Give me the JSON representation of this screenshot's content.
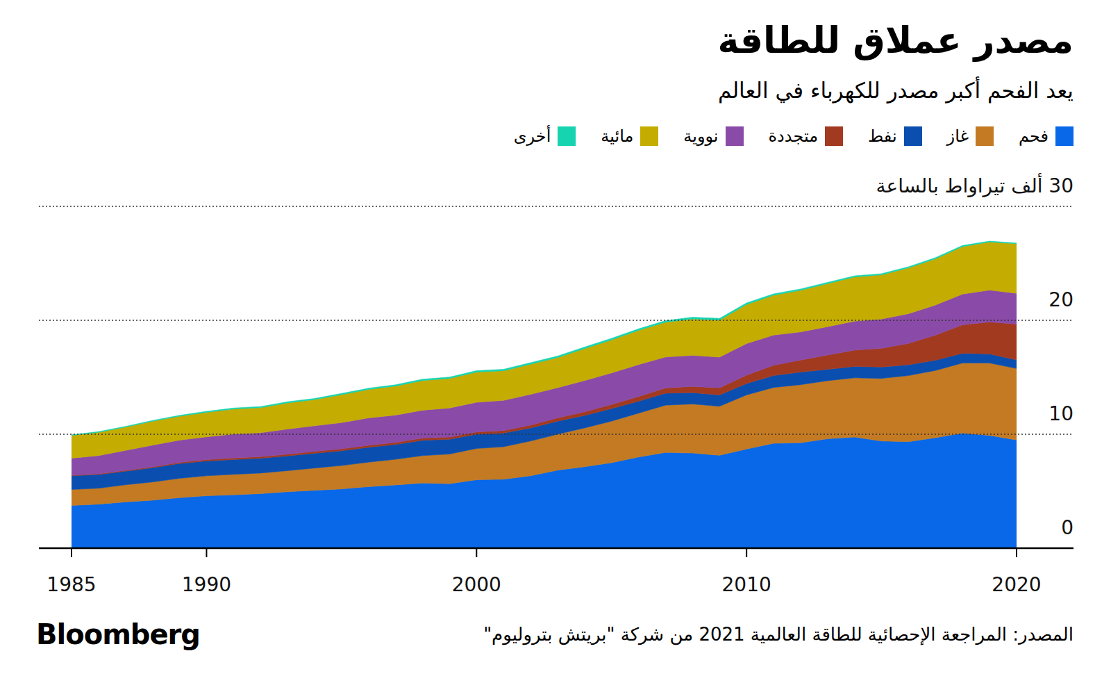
{
  "chart_data": {
    "type": "area",
    "stacked": true,
    "title": "مصدر عملاق للطاقة",
    "subtitle": "يعد الفحم أكبر مصدر للكهرباء في العالم",
    "source": "المصدر: المراجعة الإحصائية للطاقة العالمية 2021 من شركة \"بريتش بتروليوم\"",
    "credit": "Bloomberg",
    "grid": true,
    "legend": "top",
    "x": [
      1985,
      1986,
      1987,
      1988,
      1989,
      1990,
      1991,
      1992,
      1993,
      1994,
      1995,
      1996,
      1997,
      1998,
      1999,
      2000,
      2001,
      2002,
      2003,
      2004,
      2005,
      2006,
      2007,
      2008,
      2009,
      2010,
      2011,
      2012,
      2013,
      2014,
      2015,
      2016,
      2017,
      2018,
      2019,
      2020
    ],
    "xlim": [
      1985,
      2020
    ],
    "xticks": [
      1985,
      1990,
      2000,
      2010,
      2020
    ],
    "ylim": [
      0,
      30
    ],
    "yticks": [
      0,
      10,
      20,
      {
        "value": 30,
        "label": "30 ألف تيراواط بالساعة"
      }
    ],
    "series": [
      {
        "name": "فحم",
        "color": "#0868e8",
        "values": [
          3.75,
          3.86,
          4.06,
          4.21,
          4.43,
          4.6,
          4.68,
          4.79,
          4.95,
          5.08,
          5.2,
          5.4,
          5.55,
          5.72,
          5.66,
          6.0,
          6.05,
          6.35,
          6.85,
          7.15,
          7.5,
          8.0,
          8.4,
          8.35,
          8.15,
          8.7,
          9.2,
          9.25,
          9.6,
          9.75,
          9.4,
          9.35,
          9.7,
          10.1,
          9.9,
          9.5
        ]
      },
      {
        "name": "غاز",
        "color": "#c47a22",
        "values": [
          1.4,
          1.4,
          1.5,
          1.6,
          1.7,
          1.75,
          1.8,
          1.8,
          1.85,
          1.95,
          2.05,
          2.15,
          2.25,
          2.4,
          2.6,
          2.75,
          2.85,
          3.05,
          3.15,
          3.4,
          3.65,
          3.85,
          4.15,
          4.3,
          4.3,
          4.75,
          4.9,
          5.1,
          5.1,
          5.2,
          5.5,
          5.8,
          5.9,
          6.15,
          6.35,
          6.27
        ]
      },
      {
        "name": "نفط",
        "color": "#0a4fb0",
        "values": [
          1.2,
          1.2,
          1.2,
          1.25,
          1.3,
          1.3,
          1.3,
          1.3,
          1.3,
          1.3,
          1.3,
          1.3,
          1.3,
          1.35,
          1.3,
          1.25,
          1.2,
          1.15,
          1.15,
          1.1,
          1.1,
          1.05,
          1.05,
          1.0,
          1.0,
          1.0,
          1.05,
          1.1,
          1.0,
          1.0,
          1.0,
          0.95,
          0.9,
          0.85,
          0.8,
          0.75
        ]
      },
      {
        "name": "متجددة",
        "color": "#a23a20",
        "values": [
          0.05,
          0.06,
          0.07,
          0.08,
          0.1,
          0.12,
          0.13,
          0.14,
          0.15,
          0.16,
          0.17,
          0.18,
          0.18,
          0.19,
          0.19,
          0.2,
          0.22,
          0.25,
          0.28,
          0.31,
          0.36,
          0.41,
          0.46,
          0.54,
          0.62,
          0.74,
          0.9,
          1.06,
          1.25,
          1.43,
          1.64,
          1.87,
          2.2,
          2.5,
          2.8,
          3.15
        ]
      },
      {
        "name": "نووية",
        "color": "#8a4aa8",
        "values": [
          1.5,
          1.6,
          1.75,
          1.9,
          1.95,
          2.0,
          2.1,
          2.1,
          2.2,
          2.25,
          2.3,
          2.4,
          2.4,
          2.45,
          2.55,
          2.6,
          2.65,
          2.7,
          2.65,
          2.75,
          2.77,
          2.8,
          2.72,
          2.73,
          2.7,
          2.77,
          2.65,
          2.47,
          2.49,
          2.54,
          2.57,
          2.61,
          2.64,
          2.7,
          2.8,
          2.7
        ]
      },
      {
        "name": "مائية",
        "color": "#c4ac00",
        "values": [
          2.0,
          2.05,
          2.05,
          2.1,
          2.1,
          2.15,
          2.2,
          2.2,
          2.3,
          2.3,
          2.45,
          2.5,
          2.55,
          2.6,
          2.6,
          2.65,
          2.6,
          2.65,
          2.65,
          2.8,
          2.9,
          3.0,
          3.05,
          3.2,
          3.25,
          3.42,
          3.5,
          3.65,
          3.78,
          3.88,
          3.88,
          4.02,
          4.06,
          4.17,
          4.22,
          4.35
        ]
      },
      {
        "name": "أخرى",
        "color": "#16d4b0",
        "values": [
          0.05,
          0.06,
          0.06,
          0.07,
          0.08,
          0.09,
          0.09,
          0.1,
          0.1,
          0.1,
          0.11,
          0.11,
          0.11,
          0.12,
          0.12,
          0.13,
          0.13,
          0.13,
          0.13,
          0.14,
          0.14,
          0.14,
          0.14,
          0.15,
          0.15,
          0.15,
          0.12,
          0.12,
          0.11,
          0.1,
          0.1,
          0.1,
          0.1,
          0.1,
          0.08,
          0.06
        ]
      }
    ]
  }
}
